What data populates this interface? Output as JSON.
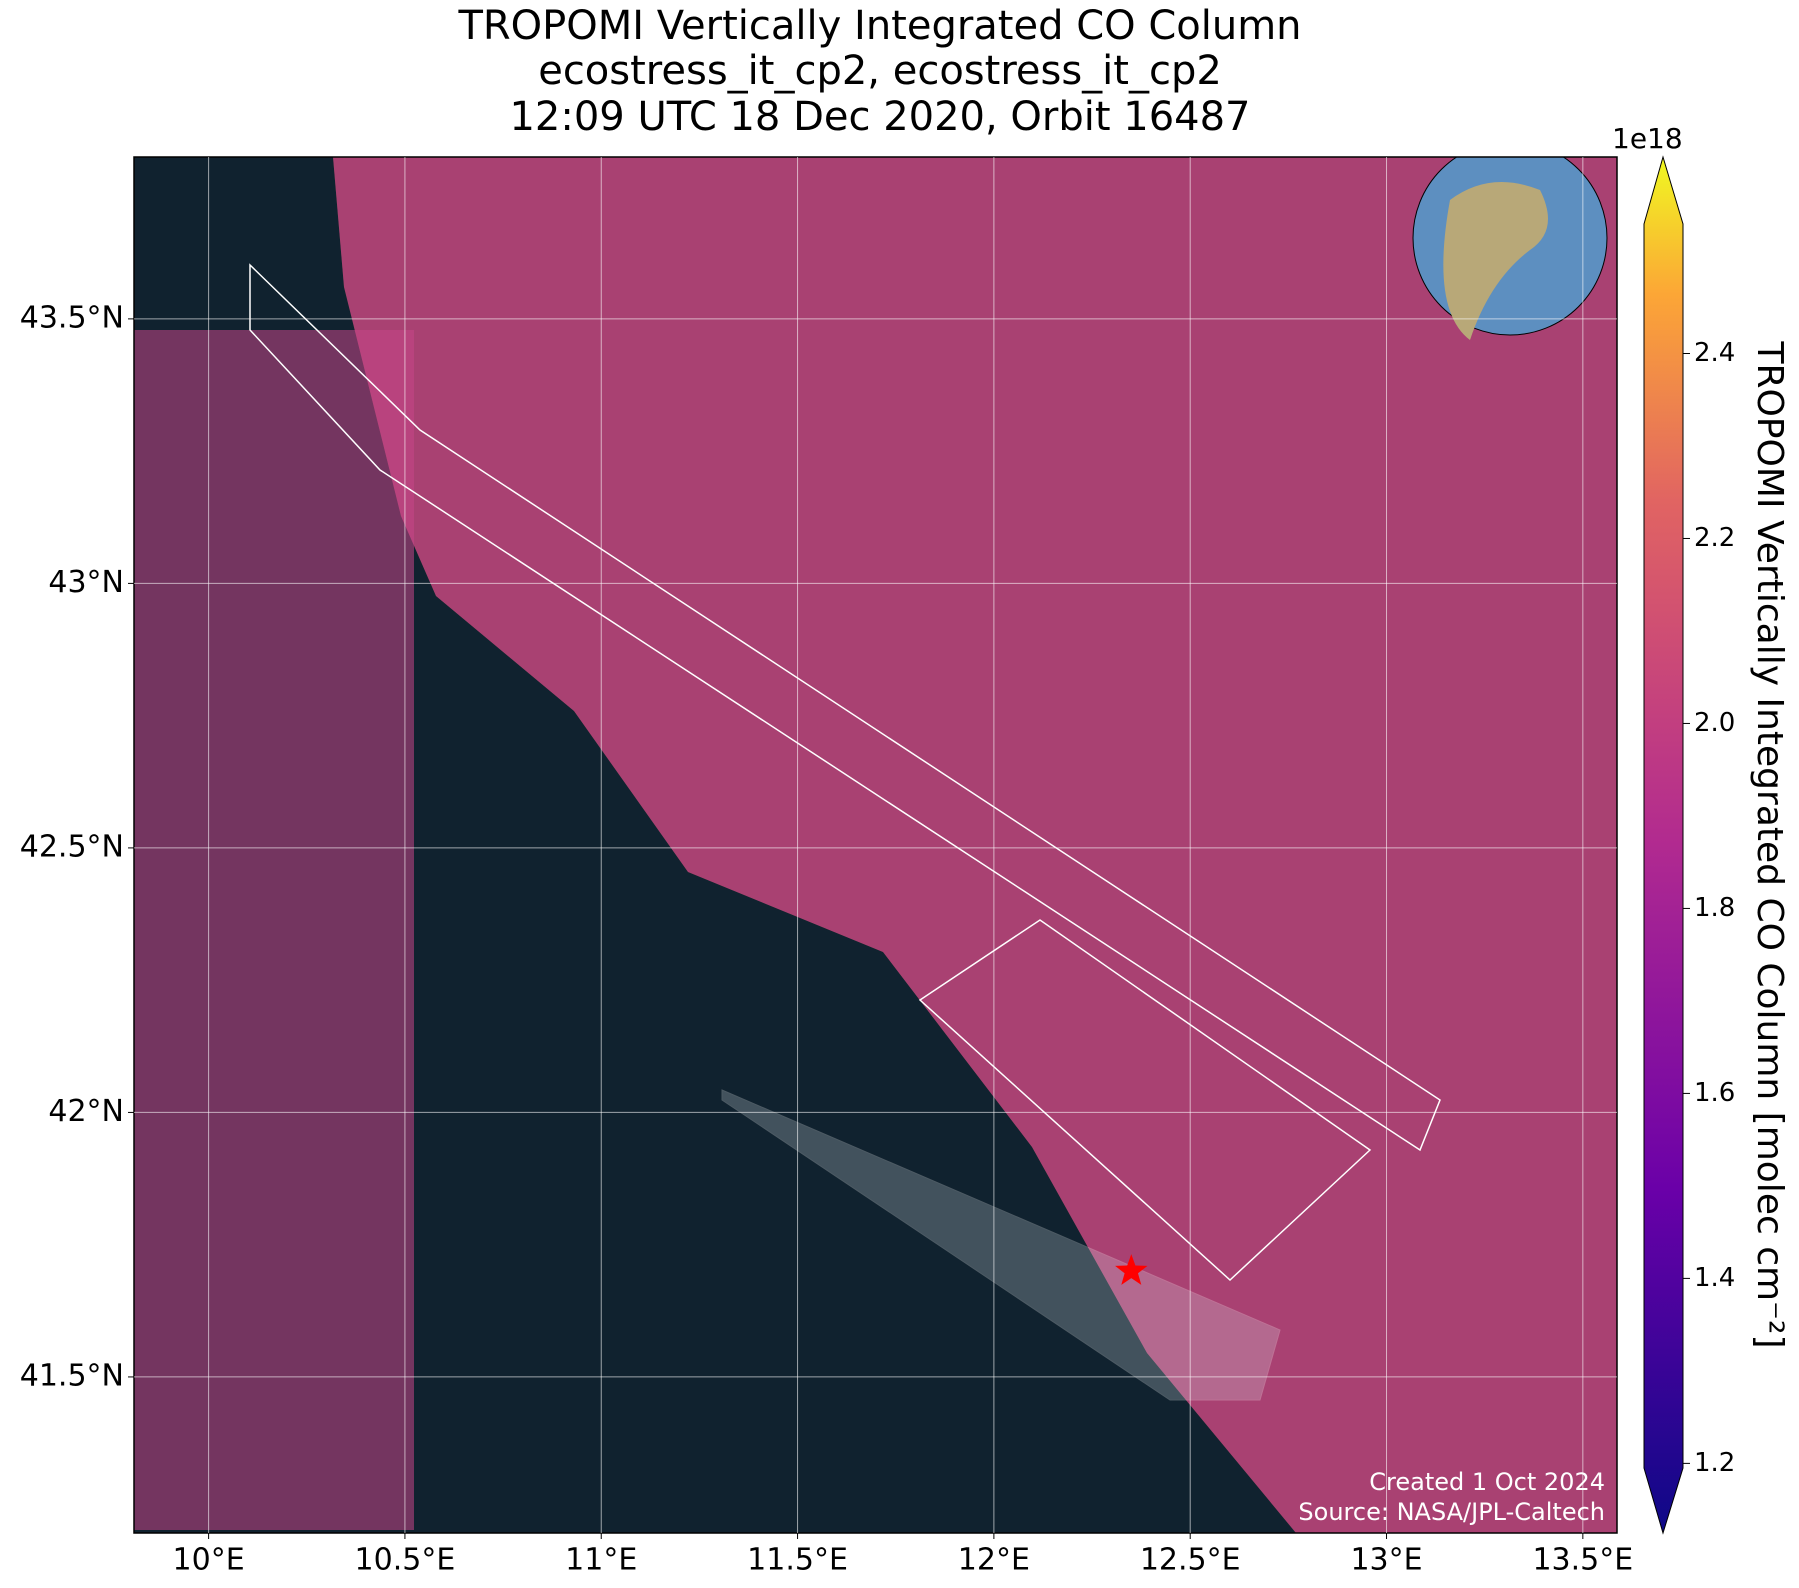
{
  "chart_data": {
    "type": "map",
    "title": [
      "TROPOMI Vertically Integrated CO Column",
      "ecostress_it_cp2, ecostress_it_cp2",
      "12:09 UTC 18 Dec 2020, Orbit 16487"
    ],
    "xlim": [
      9.81,
      13.587
    ],
    "ylim": [
      41.205,
      43.806
    ],
    "xticks": [
      {
        "value": 10,
        "label": "10°E"
      },
      {
        "value": 10.5,
        "label": "10.5°E"
      },
      {
        "value": 11,
        "label": "11°E"
      },
      {
        "value": 11.5,
        "label": "11.5°E"
      },
      {
        "value": 12,
        "label": "12°E"
      },
      {
        "value": 12.5,
        "label": "12.5°E"
      },
      {
        "value": 13,
        "label": "13°E"
      },
      {
        "value": 13.5,
        "label": "13.5°E"
      }
    ],
    "yticks": [
      {
        "value": 41.5,
        "label": "41.5°N"
      },
      {
        "value": 42,
        "label": "42°N"
      },
      {
        "value": 42.5,
        "label": "42.5°N"
      },
      {
        "value": 43,
        "label": "43°N"
      },
      {
        "value": 43.5,
        "label": "43.5°N"
      }
    ],
    "grid": true,
    "marker": {
      "lon": 12.35,
      "lat": 41.7,
      "color": "#ff0000"
    },
    "colorbar": {
      "label": "TROPOMI Vertically Integrated CO Column [molec cm⁻²]",
      "offset": "1e18",
      "colormap": "plasma",
      "lim": [
        1.195,
        2.54
      ],
      "ticks": [
        1.2,
        1.4,
        1.6,
        1.8,
        {
          "value": 2.0,
          "label": "2.0"
        },
        2.2,
        2.4
      ]
    },
    "credits": [
      "Created 1 Oct 2024",
      "Source: NASA/JPL-Caltech"
    ]
  }
}
